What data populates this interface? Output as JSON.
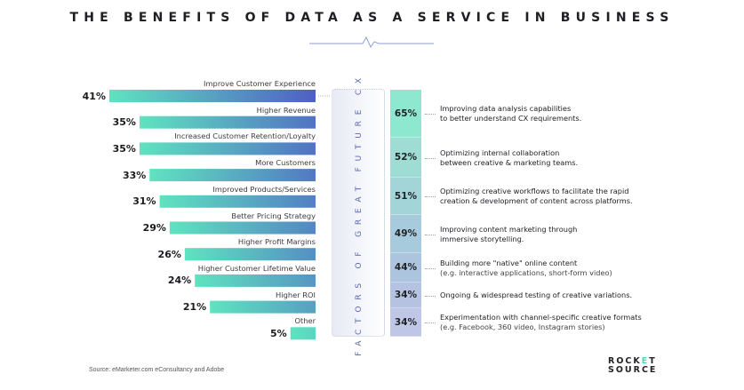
{
  "title": "THE BENEFITS OF DATA AS A SERVICE IN BUSINESS",
  "chart_data": [
    {
      "type": "bar",
      "orientation": "horizontal",
      "title": "Benefits of Data as a Service in Business",
      "categories": [
        "Improve Customer Experience",
        "Higher Revenue",
        "Increased Customer Retention/Loyalty",
        "More Customers",
        "Improved Products/Services",
        "Better Pricing Strategy",
        "Higher Profit Margins",
        "Higher Customer Lifetime Value",
        "Higher ROI",
        "Other"
      ],
      "values": [
        41,
        35,
        35,
        33,
        31,
        29,
        26,
        24,
        21,
        5
      ],
      "value_labels": [
        "41%",
        "35%",
        "35%",
        "33%",
        "31%",
        "29%",
        "26%",
        "24%",
        "21%",
        "5%"
      ],
      "unit": "%",
      "xlim": [
        0,
        41
      ],
      "grid": false,
      "colors": {
        "start": "#5fe3bf",
        "end": "#4f5fc4"
      }
    },
    {
      "type": "table",
      "title": "FACTORS OF GREAT FUTURE CX",
      "rows": [
        {
          "value": 65,
          "label": "65%",
          "text": "Improving data analysis capabilities",
          "text2": "to better understand CX requirements.",
          "sub": false
        },
        {
          "value": 52,
          "label": "52%",
          "text": "Optimizing internal collaboration",
          "text2": "between creative & marketing teams.",
          "sub": false
        },
        {
          "value": 51,
          "label": "51%",
          "text": "Optimizing creative workflows to facilitate the rapid",
          "text2": "creation & development of content across platforms.",
          "sub": false
        },
        {
          "value": 49,
          "label": "49%",
          "text": "Improving content marketing through",
          "text2": "immersive storytelling.",
          "sub": false
        },
        {
          "value": 44,
          "label": "44%",
          "text": "Building more \"native\" online content",
          "text2": "(e.g. interactive applications, short-form video)",
          "sub": true
        },
        {
          "value": 34,
          "label": "34%",
          "text": "Ongoing & widespread testing of creative variations.",
          "text2": "",
          "sub": false
        },
        {
          "value": 34,
          "label": "34%",
          "text": "Experimentation with channel-specific creative formats",
          "text2": "(e.g. Facebook, 360 video, Instagram stories)",
          "sub": true
        }
      ],
      "colors": [
        "#8ee8cf",
        "#9fdcd3",
        "#a3d4d8",
        "#a7cbdc",
        "#adc4df",
        "#b6c2e1",
        "#c0c6e6"
      ]
    }
  ],
  "source": "Source: eMarketer.com eConsultancy and Adobe",
  "logo": {
    "line1_a": "ROCK",
    "line1_b": "E",
    "line1_c": "T",
    "line2": "SOURCE"
  },
  "colors": {
    "title_line": "#8f9fd0",
    "accent": "#4fd8b4"
  }
}
